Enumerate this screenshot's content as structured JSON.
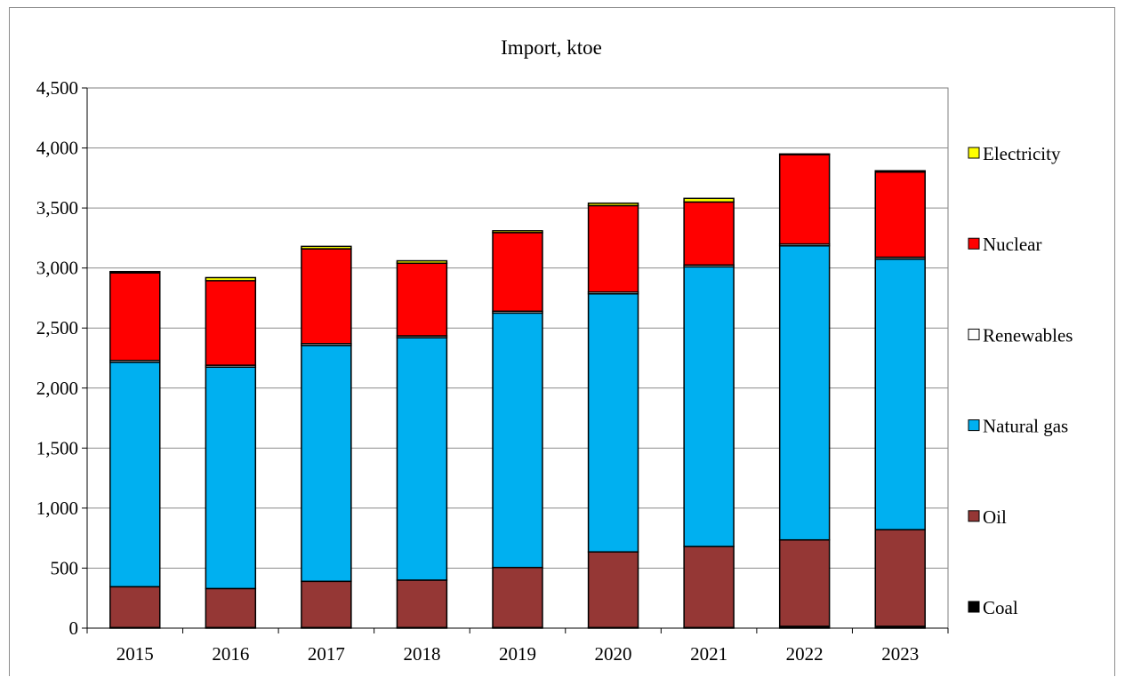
{
  "chart_data": {
    "type": "bar",
    "stacked": true,
    "title": "Import, ktoe",
    "xlabel": "",
    "ylabel": "",
    "ylim": [
      0,
      4500
    ],
    "y_ticks": [
      0,
      500,
      1000,
      1500,
      2000,
      2500,
      3000,
      3500,
      4000,
      4500
    ],
    "y_tick_labels": [
      "0",
      "500",
      "1,000",
      "1,500",
      "2,000",
      "2,500",
      "3,000",
      "3,500",
      "4,000",
      "4,500"
    ],
    "grid": true,
    "legend_position": "right",
    "categories": [
      "2015",
      "2016",
      "2017",
      "2018",
      "2019",
      "2020",
      "2021",
      "2022",
      "2023"
    ],
    "series": [
      {
        "name": "Coal",
        "color": "#000000",
        "values": [
          5,
          5,
          5,
          5,
          5,
          5,
          5,
          15,
          15
        ]
      },
      {
        "name": "Oil",
        "color": "#953735",
        "values": [
          340,
          325,
          385,
          395,
          500,
          630,
          675,
          720,
          805
        ]
      },
      {
        "name": "Natural gas",
        "color": "#00b0f0",
        "values": [
          1870,
          1845,
          1965,
          2020,
          2120,
          2150,
          2330,
          2450,
          2255
        ]
      },
      {
        "name": "Renewables",
        "color": "#ffffff",
        "values": [
          15,
          15,
          15,
          15,
          15,
          15,
          15,
          15,
          15
        ]
      },
      {
        "name": "Nuclear",
        "color": "#ff0000",
        "values": [
          730,
          705,
          790,
          605,
          655,
          720,
          525,
          745,
          710
        ]
      },
      {
        "name": "Electricity",
        "color": "#ffff00",
        "values": [
          10,
          25,
          20,
          20,
          15,
          20,
          30,
          5,
          10
        ]
      }
    ]
  }
}
